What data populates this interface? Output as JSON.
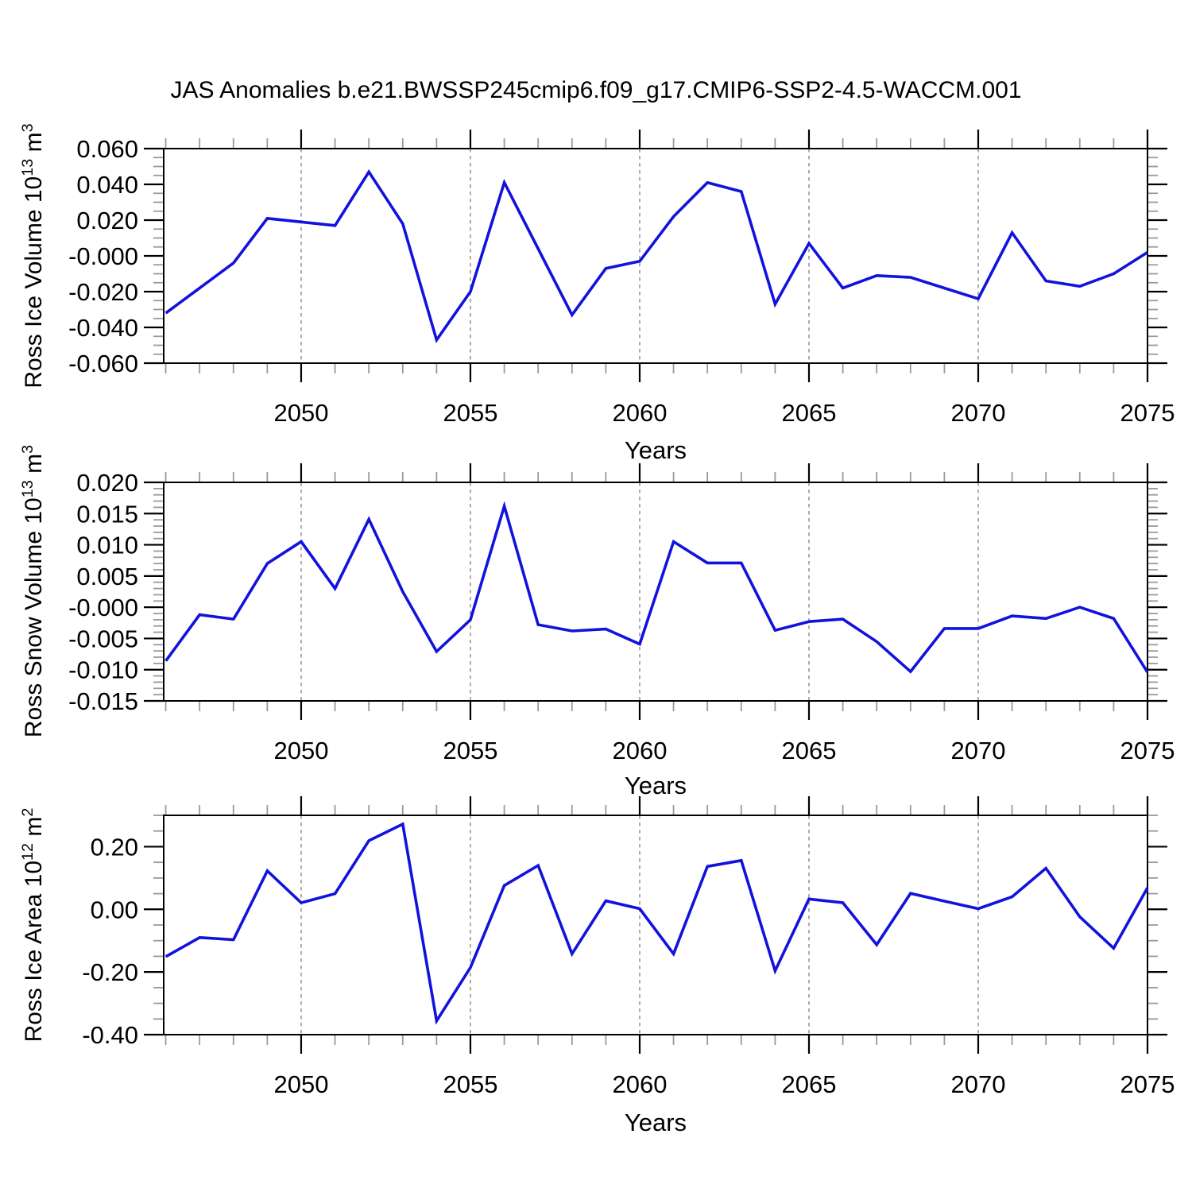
{
  "title": "JAS Anomalies b.e21.BWSSP245cmip6.f09_g17.CMIP6-SSP2-4.5-WACCM.001",
  "x_axis_label": "Years",
  "chart_data": {
    "type": "line",
    "x": [
      2046,
      2047,
      2048,
      2049,
      2050,
      2051,
      2052,
      2053,
      2054,
      2055,
      2056,
      2057,
      2058,
      2059,
      2060,
      2061,
      2062,
      2063,
      2064,
      2065,
      2066,
      2067,
      2068,
      2069,
      2070,
      2071,
      2072,
      2073,
      2074,
      2075
    ],
    "xlim": [
      2045.94,
      2075
    ],
    "x_major_ticks": [
      2050,
      2055,
      2060,
      2065,
      2070,
      2075
    ],
    "x_tick_labels": [
      "2050",
      "2055",
      "2060",
      "2065",
      "2070",
      "2075"
    ],
    "grid_at": [
      2050,
      2055,
      2060,
      2065,
      2070
    ],
    "xlabel": "Years",
    "grid_on": true,
    "legend_position": "none",
    "line_color": "#1212dd",
    "grid_color": "#808080",
    "minor_tick_color": "#9a9a9a",
    "axis_color": "#000000",
    "panels": [
      {
        "id": "ross-ice-volume",
        "ylabel_base": "Ross Ice Volume 10",
        "ylabel_exp": "13",
        "ylabel_unit": " m",
        "ylabel_unit_exp": "3",
        "ylim": [
          -0.06,
          0.06
        ],
        "y_major_step": 0.02,
        "y_minor_step": 0.005,
        "y_decimals": 3,
        "values": [
          -0.032,
          -0.018,
          -0.004,
          0.021,
          0.019,
          0.017,
          0.047,
          0.018,
          -0.047,
          -0.02,
          0.041,
          0.004,
          -0.033,
          -0.007,
          -0.003,
          0.022,
          0.041,
          0.036,
          -0.027,
          0.007,
          -0.018,
          -0.011,
          -0.012,
          -0.018,
          -0.024,
          0.013,
          -0.014,
          -0.017,
          -0.01,
          0.002
        ]
      },
      {
        "id": "ross-snow-volume",
        "ylabel_base": "Ross Snow Volume 10",
        "ylabel_exp": "13",
        "ylabel_unit": " m",
        "ylabel_unit_exp": "3",
        "ylim": [
          -0.015,
          0.02
        ],
        "y_major_step": 0.005,
        "y_minor_step": 0.001,
        "y_decimals": 3,
        "values": [
          -0.0086,
          -0.0012,
          -0.0019,
          0.007,
          0.0105,
          0.003,
          0.0141,
          0.0025,
          -0.0071,
          -0.002,
          0.0162,
          -0.0028,
          -0.0038,
          -0.0035,
          -0.0059,
          0.0105,
          0.0071,
          0.0071,
          -0.0037,
          -0.0023,
          -0.0019,
          -0.0055,
          -0.0103,
          -0.0034,
          -0.0034,
          -0.0014,
          -0.0018,
          0.0,
          -0.0018,
          -0.0104
        ]
      },
      {
        "id": "ross-ice-area",
        "ylabel_base": "Ross Ice Area 10",
        "ylabel_exp": "12",
        "ylabel_unit": " m",
        "ylabel_unit_exp": "2",
        "ylim": [
          -0.4,
          0.3
        ],
        "y_major_step": 0.2,
        "y_minor_step": 0.05,
        "y_decimals": 2,
        "values": [
          -0.151,
          -0.09,
          -0.097,
          0.123,
          0.021,
          0.05,
          0.219,
          0.272,
          -0.356,
          -0.186,
          0.076,
          0.14,
          -0.142,
          0.027,
          0.002,
          -0.142,
          0.137,
          0.156,
          -0.196,
          0.033,
          0.021,
          -0.113,
          0.051,
          0.026,
          0.002,
          0.04,
          0.131,
          -0.024,
          -0.124,
          0.069
        ]
      }
    ]
  }
}
